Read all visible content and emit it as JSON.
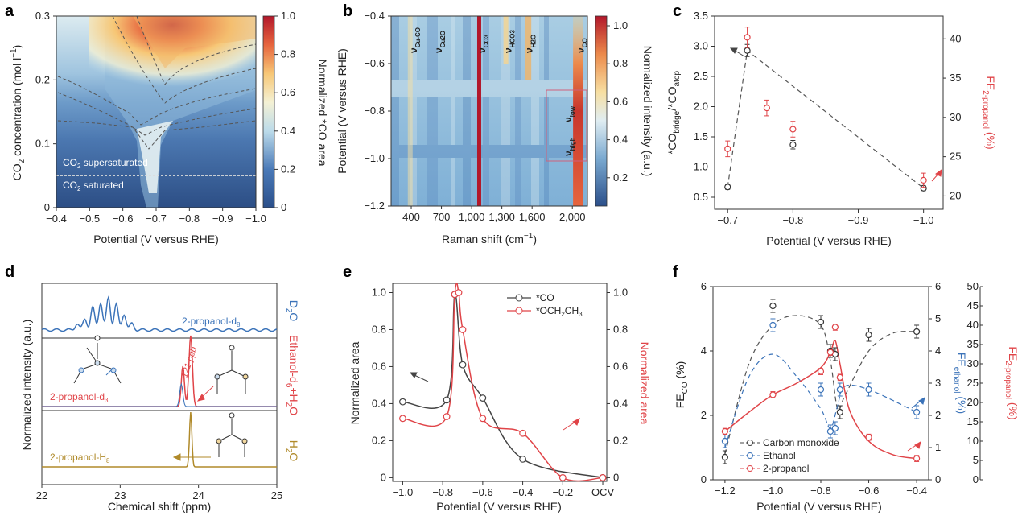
{
  "colors": {
    "black": "#333333",
    "red": "#e04448",
    "blue": "#3b73b9",
    "gold": "#b08a2a",
    "dash": "#555555",
    "grey_line": "#444444",
    "wine": "#b3202a"
  },
  "chart_data": [
    {
      "panel": "a",
      "type": "heatmap",
      "xlabel": "Potential (V versus RHE)",
      "ylabel": "CO2 concentration (mol l⁻¹)",
      "x_ticks": [
        "−0.4",
        "−0.5",
        "−0.6",
        "−0.7",
        "−0.8",
        "−0.9",
        "−1.0"
      ],
      "y_ticks": [
        "0",
        "0.1",
        "0.2",
        "0.3"
      ],
      "xlim": [
        -0.4,
        -1.0
      ],
      "ylim": [
        0,
        0.3
      ],
      "colorbar_label": "Normalized *CO area",
      "colorbar_ticks": [
        "0",
        "0.2",
        "0.4",
        "0.6",
        "0.8",
        "1.0"
      ],
      "annotations": [
        "CO2 supersaturated",
        "CO2 saturated"
      ],
      "threshold_y": 0.05
    },
    {
      "panel": "b",
      "type": "heatmap",
      "xlabel": "Raman shift (cm⁻¹)",
      "ylabel": "Potential (V versus RHE)",
      "x_ticks": [
        "400",
        "700",
        "1,000",
        "1,300",
        "1,600",
        "2,000"
      ],
      "y_ticks": [
        "−0.4",
        "−0.6",
        "−0.8",
        "−1.0",
        "−1.2"
      ],
      "xlim": [
        200,
        2150
      ],
      "ylim": [
        -0.4,
        -1.2
      ],
      "colorbar_label": "Normalized intensity (a.u.)",
      "colorbar_ticks": [
        "0.2",
        "0.4",
        "0.6",
        "0.8",
        "1.0"
      ],
      "band_labels": [
        {
          "sym": "ν",
          "sub": "Cu-CO",
          "shift": 390
        },
        {
          "sym": "ν",
          "sub": "Cu2O",
          "shift": 640
        },
        {
          "sym": "ν",
          "sub": "CO3",
          "shift": 1070
        },
        {
          "sym": "ν",
          "sub": "HCO3",
          "shift": 1330
        },
        {
          "sym": "ν",
          "sub": "H2O",
          "shift": 1540
        },
        {
          "sym": "ν",
          "sub": "CO",
          "shift": 2050
        }
      ],
      "inset_labels": [
        {
          "sym": "ν",
          "sub": "low"
        },
        {
          "sym": "ν",
          "sub": "high"
        }
      ]
    },
    {
      "panel": "c",
      "type": "scatter",
      "xlabel": "Potential (V versus RHE)",
      "ylabel_left": "*CObridge/*COatop",
      "ylabel_right": "FE2-propanol (%)",
      "x_ticks": [
        "−0.7",
        "−0.8",
        "−0.9",
        "−1.0"
      ],
      "x_tick_values": [
        -0.7,
        -0.8,
        -0.9,
        -1.0
      ],
      "y_left_ticks": [
        "0.5",
        "1.0",
        "1.5",
        "2.0",
        "2.5",
        "3.0",
        "3.5"
      ],
      "y_left_values": [
        0.5,
        1.0,
        1.5,
        2.0,
        2.5,
        3.0,
        3.5
      ],
      "y_right_ticks": [
        "20",
        "25",
        "30",
        "35",
        "40"
      ],
      "y_right_values": [
        20,
        25,
        30,
        35,
        40
      ],
      "xlim": [
        -0.68,
        -1.03
      ],
      "ylim_left": [
        0.3,
        3.5
      ],
      "ylim_right": [
        18.3,
        42.9
      ],
      "series": [
        {
          "x": [
            -0.7,
            -0.73,
            -0.8,
            -1.0
          ],
          "y": [
            0.67,
            2.93,
            1.37,
            0.65
          ],
          "err": [
            0.04,
            0.1,
            0.07,
            0.04
          ]
        },
        {
          "x": [
            -0.7,
            -0.73,
            -0.76,
            -0.8,
            -1.0
          ],
          "y": [
            26.0,
            40.2,
            31.2,
            28.5,
            22.0
          ],
          "err": [
            1.0,
            1.3,
            1.0,
            1.0,
            0.9
          ]
        }
      ]
    },
    {
      "panel": "d",
      "type": "line",
      "xlabel": "Chemical shift (ppm)",
      "ylabel": "Normalized intensity (a.u.)",
      "x_ticks": [
        "22",
        "23",
        "24",
        "25"
      ],
      "x_tick_values": [
        22,
        23,
        24,
        25
      ],
      "xlim": [
        22,
        25
      ],
      "trace_labels": [
        "2-propanol-d8",
        "2-propanol-d3",
        "2-propanol-H8"
      ],
      "solvent_labels": [
        "D2O",
        "Ethanol-d6+H2O",
        "H2O"
      ],
      "annotation": "121 ppb",
      "peak_center": 23.9
    },
    {
      "panel": "e",
      "type": "line",
      "xlabel": "Potential (V versus RHE)",
      "ylabel_left": "Normalized area",
      "ylabel_right": "Normalized area",
      "x_ticks": [
        "−1.0",
        "−0.8",
        "−0.6",
        "−0.4",
        "−0.2",
        "OCV"
      ],
      "x_tick_values": [
        -1.0,
        -0.8,
        -0.6,
        -0.4,
        -0.2,
        0.0
      ],
      "y_ticks": [
        "0",
        "0.2",
        "0.4",
        "0.6",
        "0.8",
        "1.0"
      ],
      "y_tick_values": [
        0,
        0.2,
        0.4,
        0.6,
        0.8,
        1.0
      ],
      "xlim": [
        -1.05,
        0.02
      ],
      "ylim": [
        -0.02,
        1.05
      ],
      "legend_position": "top-right",
      "series": [
        {
          "name": "*CO",
          "x": [
            -1.0,
            -0.78,
            -0.74,
            -0.7,
            -0.6,
            -0.4,
            0.0
          ],
          "y": [
            0.41,
            0.42,
            0.99,
            0.61,
            0.43,
            0.1,
            0.0
          ]
        },
        {
          "name": "*OCH2CH3",
          "x": [
            -1.0,
            -0.78,
            -0.74,
            -0.72,
            -0.7,
            -0.6,
            -0.4,
            -0.2,
            0.0
          ],
          "y": [
            0.32,
            0.33,
            0.99,
            1.0,
            0.8,
            0.32,
            0.24,
            0.0,
            0.0
          ]
        }
      ]
    },
    {
      "panel": "f",
      "type": "line",
      "xlabel": "Potential (V versus RHE)",
      "ylabel_left": "FECO (%)",
      "ylabel_mid": "FEethanol (%)",
      "ylabel_right": "FE2-propanol (%)",
      "x_ticks": [
        "−1.2",
        "−1.0",
        "−0.8",
        "−0.6",
        "−0.4"
      ],
      "x_tick_values": [
        -1.2,
        -1.0,
        -0.8,
        -0.6,
        -0.4
      ],
      "y_left_ticks": [
        "0",
        "2",
        "4",
        "6"
      ],
      "y_left_values": [
        0,
        2,
        4,
        6
      ],
      "y_mid_ticks": [
        "0",
        "1",
        "2",
        "3",
        "4",
        "5",
        "6"
      ],
      "y_mid_values": [
        0,
        1,
        2,
        3,
        4,
        5,
        6
      ],
      "y_right_ticks": [
        "0",
        "5",
        "10",
        "15",
        "20",
        "25",
        "30",
        "35",
        "40",
        "45",
        "50"
      ],
      "y_right_values": [
        0,
        5,
        10,
        15,
        20,
        25,
        30,
        35,
        40,
        45,
        50
      ],
      "xlim": [
        -1.25,
        -0.35
      ],
      "ylim_left": [
        0,
        6
      ],
      "ylim_mid": [
        0,
        6
      ],
      "ylim_right": [
        0,
        50
      ],
      "legend_position": "bottom-left",
      "series": [
        {
          "name": "Carbon monoxide",
          "x": [
            -1.2,
            -1.0,
            -0.8,
            -0.76,
            -0.74,
            -0.72,
            -0.6,
            -0.4
          ],
          "y": [
            0.7,
            5.4,
            4.9,
            4.0,
            3.9,
            2.1,
            4.5,
            4.6
          ]
        },
        {
          "name": "Ethanol",
          "x": [
            -1.2,
            -1.0,
            -0.8,
            -0.76,
            -0.74,
            -0.72,
            -0.6,
            -0.4
          ],
          "y": [
            1.2,
            4.8,
            2.8,
            1.5,
            1.6,
            2.8,
            2.8,
            2.1
          ]
        },
        {
          "name": "2-propanol",
          "x": [
            -1.2,
            -1.0,
            -0.8,
            -0.76,
            -0.74,
            -0.72,
            -0.6,
            -0.4
          ],
          "y": [
            12.5,
            22.0,
            28.0,
            33.0,
            39.5,
            26.5,
            11.0,
            5.5
          ]
        }
      ]
    }
  ],
  "panel_letters": [
    "a",
    "b",
    "c",
    "d",
    "e",
    "f"
  ]
}
